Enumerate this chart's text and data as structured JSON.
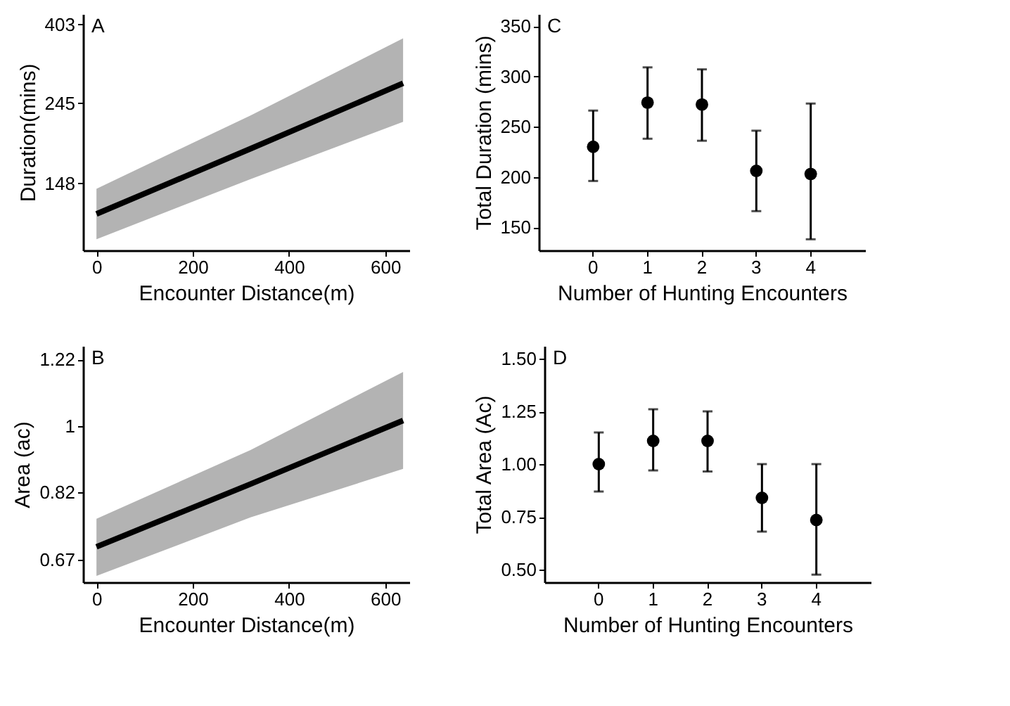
{
  "chart_data": [
    {
      "type": "line",
      "xlabel": "Encounter Distance(m)",
      "ylabel": "Duration(mins)",
      "annotations": [
        "A"
      ],
      "log": "y",
      "grid": false,
      "xlim": [
        -28,
        650
      ],
      "xticks": [
        0,
        200,
        400,
        600
      ],
      "ylim": [
        97,
        430
      ],
      "yticks": [
        148,
        245,
        403
      ],
      "series": [
        {
          "color": "#000000",
          "x": [
            0,
            320,
            637
          ],
          "values": [
            122,
            184,
            278
          ],
          "lower": [
            104,
            152,
            218
          ],
          "upper": [
            143,
            227,
            369
          ]
        }
      ]
    },
    {
      "type": "scatter",
      "xlabel": "Number of Hunting Encounters",
      "ylabel": "Total Duration (mins)",
      "annotations": [
        "C"
      ],
      "grid": false,
      "categories": [
        "0",
        "1",
        "2",
        "3",
        "4"
      ],
      "ylim": [
        127,
        362
      ],
      "yticks": [
        150,
        200,
        250,
        300,
        350
      ],
      "series": [
        {
          "color": "#000000",
          "values": [
            230,
            274,
            272,
            206,
            203
          ],
          "errors": [
            [
              196,
              266
            ],
            [
              238,
              309
            ],
            [
              236,
              307
            ],
            [
              166,
              246
            ],
            [
              138,
              273
            ]
          ]
        }
      ]
    },
    {
      "type": "line",
      "xlabel": "Encounter Distance(m)",
      "ylabel": "Area (ac)",
      "annotations": [
        "B"
      ],
      "log": "y",
      "grid": false,
      "xlim": [
        -28,
        650
      ],
      "xticks": [
        0,
        200,
        400,
        600
      ],
      "ylim": [
        0.626,
        1.27
      ],
      "yticks": [
        0.67,
        0.82,
        1,
        1.22
      ],
      "series": [
        {
          "color": "#000000",
          "x": [
            0,
            320,
            637
          ],
          "values": [
            0.696,
            0.84,
            1.016
          ],
          "lower": [
            0.638,
            0.76,
            0.879
          ],
          "upper": [
            0.757,
            0.93,
            1.175
          ]
        }
      ]
    },
    {
      "type": "scatter",
      "xlabel": "Number of Hunting Encounters",
      "ylabel": "Total Area (Ac)",
      "annotations": [
        "D"
      ],
      "grid": false,
      "categories": [
        "0",
        "1",
        "2",
        "3",
        "4"
      ],
      "ylim": [
        0.44,
        1.56
      ],
      "yticks": [
        {
          "value": 0.5,
          "label": "0.50"
        },
        {
          "value": 0.75,
          "label": "0.75"
        },
        {
          "value": 1,
          "label": "1.00"
        },
        {
          "value": 1.25,
          "label": "1.25"
        },
        {
          "value": 1.5,
          "label": "1.50"
        }
      ],
      "series": [
        {
          "color": "#000000",
          "values": [
            1.0,
            1.11,
            1.11,
            0.84,
            0.735
          ],
          "errors": [
            [
              0.87,
              1.15
            ],
            [
              0.97,
              1.26
            ],
            [
              0.965,
              1.25
            ],
            [
              0.68,
              1.0
            ],
            [
              0.476,
              1.0
            ]
          ]
        }
      ]
    }
  ]
}
